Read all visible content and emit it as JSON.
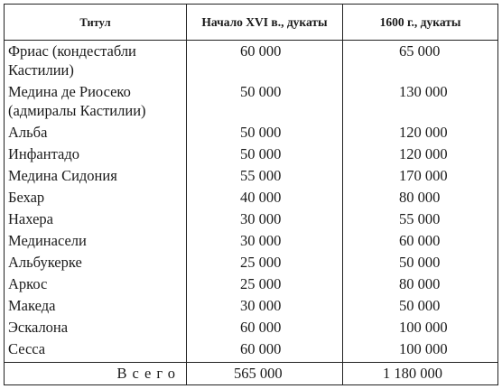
{
  "table": {
    "headers": {
      "title": "Титул",
      "early": "Начало XVI в., дукаты",
      "late": "1600 г., дукаты"
    },
    "rows": [
      {
        "name": "Фриас (кондестабли Кастилии)",
        "early": "60 000",
        "late": "65 000"
      },
      {
        "name": "Медина де Риосеко (адмиралы Кастилии)",
        "early": "50 000",
        "late": "130 000"
      },
      {
        "name": "Альба",
        "early": "50 000",
        "late": "120 000"
      },
      {
        "name": "Инфантадо",
        "early": "50 000",
        "late": "120 000"
      },
      {
        "name": "Медина Сидония",
        "early": "55 000",
        "late": "170 000"
      },
      {
        "name": "Бехар",
        "early": "40 000",
        "late": "80 000"
      },
      {
        "name": "Нахера",
        "early": "30 000",
        "late": "55 000"
      },
      {
        "name": "Мединасели",
        "early": "30 000",
        "late": "60 000"
      },
      {
        "name": "Альбукерке",
        "early": "25 000",
        "late": "50 000"
      },
      {
        "name": "Аркос",
        "early": "25 000",
        "late": "80 000"
      },
      {
        "name": "Македа",
        "early": "30 000",
        "late": "50 000"
      },
      {
        "name": "Эскалона",
        "early": "60 000",
        "late": "100 000"
      },
      {
        "name": "Сесса",
        "early": "60 000",
        "late": "100 000"
      }
    ],
    "total": {
      "label": "Всего",
      "early": "565 000",
      "late": "1 180 000"
    }
  }
}
